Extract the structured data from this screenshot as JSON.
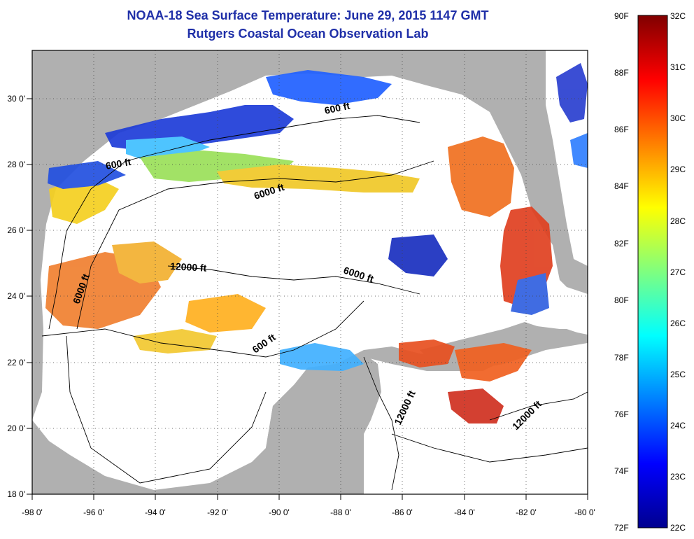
{
  "title": "NOAA-18 Sea Surface Temperature:  June 29, 2015 1147 GMT",
  "subtitle": "Rutgers Coastal Ocean Observation Lab",
  "map": {
    "lon_range": [
      -98,
      -80
    ],
    "lat_range": [
      18,
      31
    ],
    "x_ticks": [
      "-98 0'",
      "-96 0'",
      "-94 0'",
      "-92 0'",
      "-90 0'",
      "-88 0'",
      "-86 0'",
      "-84 0'",
      "-82 0'",
      "-80 0'"
    ],
    "y_ticks": [
      "18 0'",
      "20 0'",
      "22 0'",
      "24 0'",
      "26 0'",
      "28 0'",
      "30 0'"
    ],
    "contour_labels": [
      "600 ft",
      "600 ft",
      "6000 ft",
      "12000 ft",
      "6000 ft",
      "6000 ft",
      "600 ft",
      "12000 ft",
      "12000 ft"
    ],
    "land_color": "#b0b0b0",
    "ocean_color": "#ffffff"
  },
  "colorbar": {
    "fahrenheit": [
      "90F",
      "88F",
      "86F",
      "84F",
      "82F",
      "80F",
      "78F",
      "76F",
      "74F",
      "72F"
    ],
    "celsius": [
      "32C",
      "31C",
      "30C",
      "29C",
      "28C",
      "27C",
      "26C",
      "25C",
      "24C",
      "23C",
      "22C"
    ],
    "colormap": "jet"
  }
}
